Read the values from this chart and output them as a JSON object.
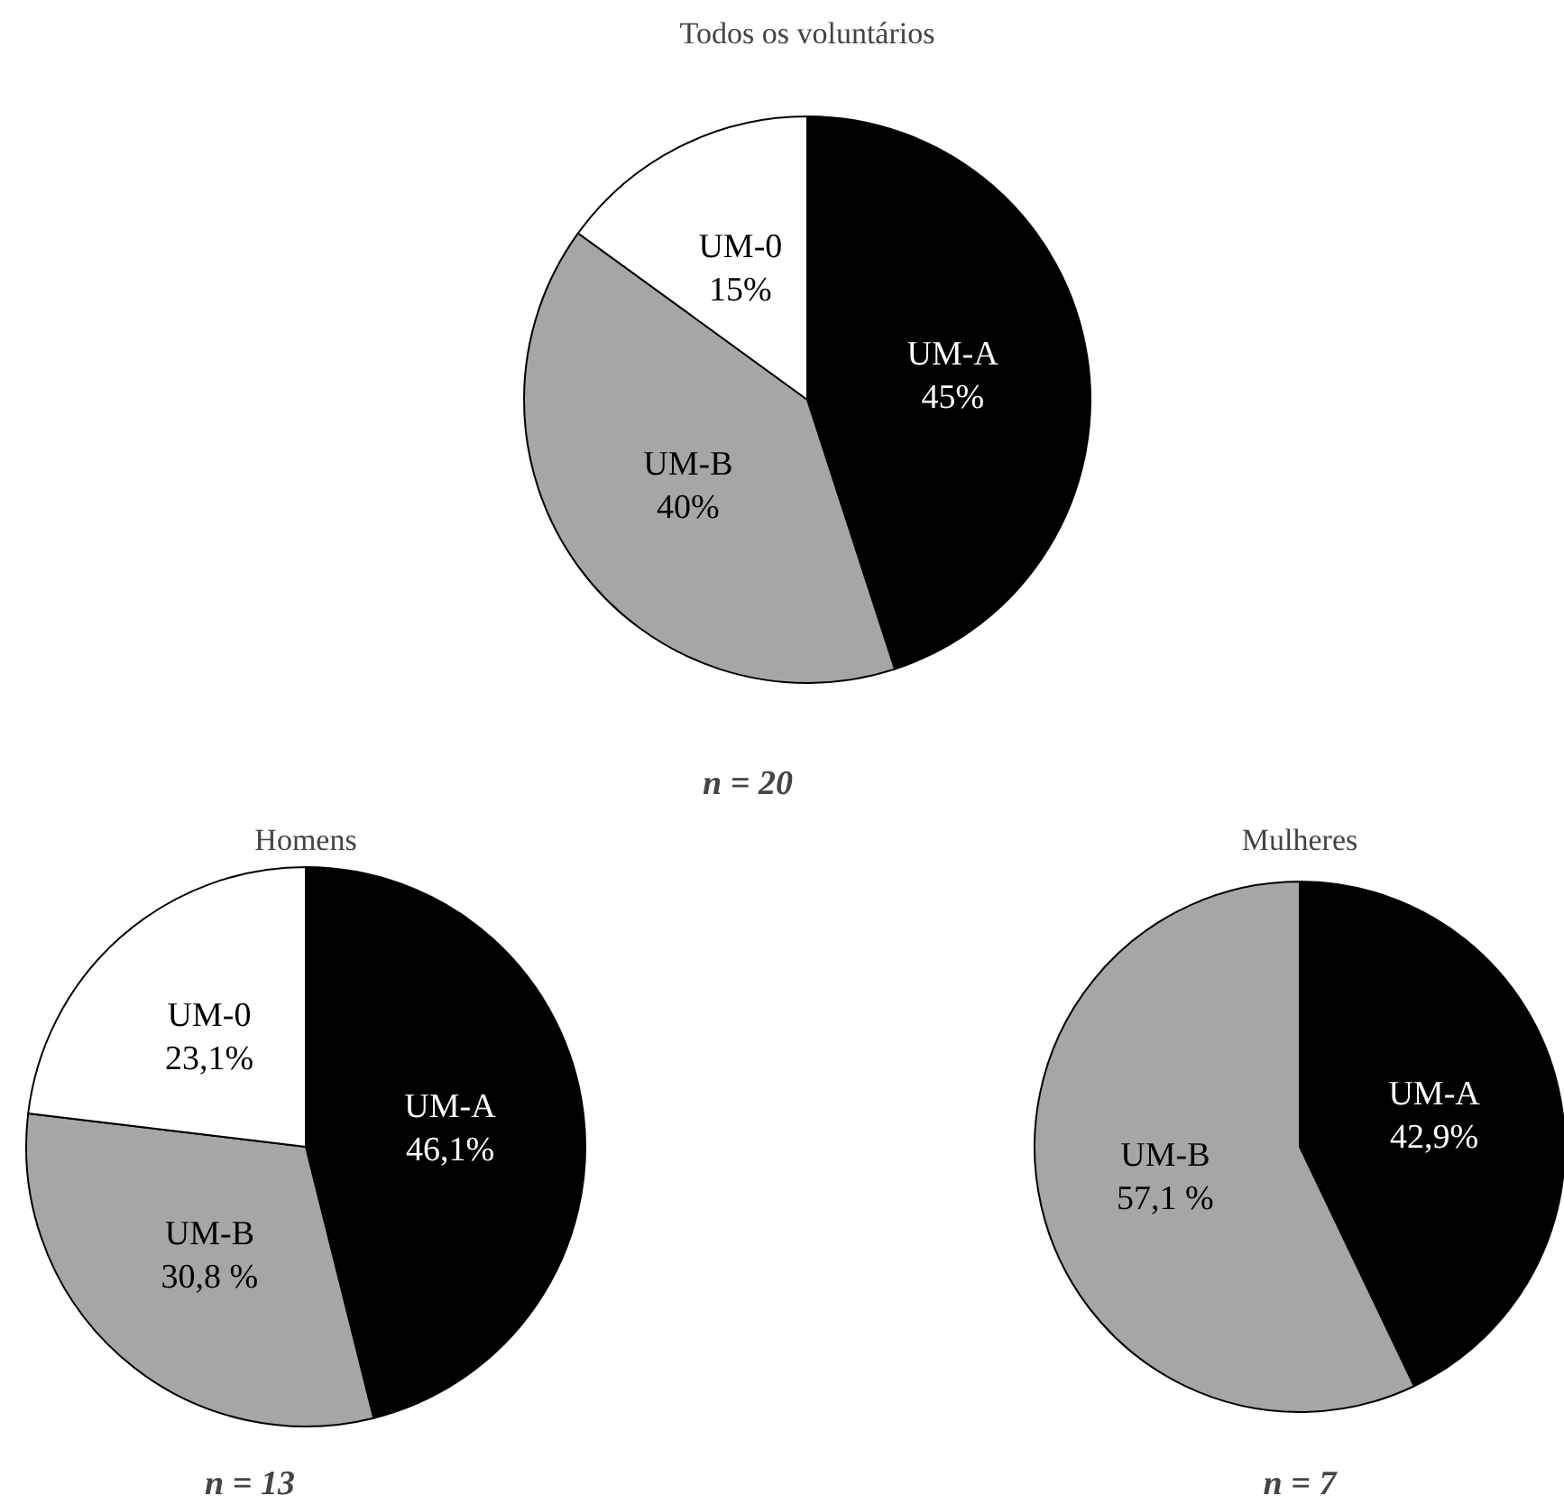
{
  "chart_data": [
    {
      "type": "pie",
      "title": "Todos os voluntários",
      "categories": [
        "UM-A",
        "UM-B",
        "UM-0"
      ],
      "values": [
        45,
        40,
        15
      ],
      "colors": [
        "#000000",
        "#a6a5a7",
        "#ffffff"
      ],
      "value_labels": [
        "45%",
        "40%",
        "15%"
      ],
      "data_labels": true,
      "annotations": [
        "n = 20"
      ]
    },
    {
      "type": "pie",
      "title": "Homens",
      "categories": [
        "UM-A",
        "UM-B",
        "UM-0"
      ],
      "values": [
        46.1,
        30.8,
        23.1
      ],
      "colors": [
        "#000000",
        "#a6a5a7",
        "#ffffff"
      ],
      "value_labels": [
        "46,1%",
        "30,8 %",
        "23,1%"
      ],
      "data_labels": true,
      "annotations": [
        "n = 13"
      ]
    },
    {
      "type": "pie",
      "title": "Mulheres",
      "categories": [
        "UM-A",
        "UM-B"
      ],
      "values": [
        42.9,
        57.1
      ],
      "colors": [
        "#000000",
        "#a6a5a7"
      ],
      "value_labels": [
        "42,9%",
        "57,1 %"
      ],
      "data_labels": true,
      "annotations": [
        "n = 7"
      ]
    }
  ]
}
